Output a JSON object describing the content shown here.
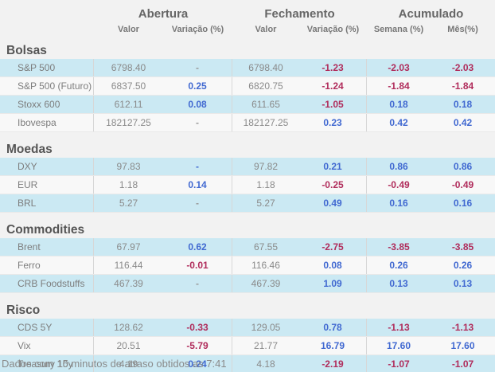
{
  "header": {
    "groups": [
      "Abertura",
      "Fechamento",
      "Acumulado"
    ],
    "subcolumns": [
      "Valor",
      "Variação (%)",
      "Valor",
      "Variação (%)",
      "Semana (%)",
      "Mês(%)"
    ]
  },
  "sections": [
    {
      "id": "bolsas",
      "title": "Bolsas",
      "rows": [
        {
          "name": "S&P 500",
          "values": [
            {
              "t": "6798.40",
              "s": "val"
            },
            {
              "t": "-",
              "s": "neu"
            },
            {
              "t": "6798.40",
              "s": "val"
            },
            {
              "t": "-1.23",
              "s": "neg"
            },
            {
              "t": "-2.03",
              "s": "neg"
            },
            {
              "t": "-2.03",
              "s": "neg"
            }
          ]
        },
        {
          "name": "S&P 500 (Futuro)",
          "values": [
            {
              "t": "6837.50",
              "s": "val"
            },
            {
              "t": "0.25",
              "s": "pos"
            },
            {
              "t": "6820.75",
              "s": "val"
            },
            {
              "t": "-1.24",
              "s": "neg"
            },
            {
              "t": "-1.84",
              "s": "neg"
            },
            {
              "t": "-1.84",
              "s": "neg"
            }
          ]
        },
        {
          "name": "Stoxx 600",
          "values": [
            {
              "t": "612.11",
              "s": "val"
            },
            {
              "t": "0.08",
              "s": "pos"
            },
            {
              "t": "611.65",
              "s": "val"
            },
            {
              "t": "-1.05",
              "s": "neg"
            },
            {
              "t": "0.18",
              "s": "pos"
            },
            {
              "t": "0.18",
              "s": "pos"
            }
          ]
        },
        {
          "name": "Ibovespa",
          "values": [
            {
              "t": "182127.25",
              "s": "val"
            },
            {
              "t": "-",
              "s": "neu"
            },
            {
              "t": "182127.25",
              "s": "val"
            },
            {
              "t": "0.23",
              "s": "pos"
            },
            {
              "t": "0.42",
              "s": "pos"
            },
            {
              "t": "0.42",
              "s": "pos"
            }
          ]
        }
      ]
    },
    {
      "id": "moedas",
      "title": "Moedas",
      "rows": [
        {
          "name": "DXY",
          "values": [
            {
              "t": "97.83",
              "s": "val"
            },
            {
              "t": "-",
              "s": "pos"
            },
            {
              "t": "97.82",
              "s": "val"
            },
            {
              "t": "0.21",
              "s": "pos"
            },
            {
              "t": "0.86",
              "s": "pos"
            },
            {
              "t": "0.86",
              "s": "pos"
            }
          ]
        },
        {
          "name": "EUR",
          "values": [
            {
              "t": "1.18",
              "s": "val"
            },
            {
              "t": "0.14",
              "s": "pos"
            },
            {
              "t": "1.18",
              "s": "val"
            },
            {
              "t": "-0.25",
              "s": "neg"
            },
            {
              "t": "-0.49",
              "s": "neg"
            },
            {
              "t": "-0.49",
              "s": "neg"
            }
          ]
        },
        {
          "name": "BRL",
          "values": [
            {
              "t": "5.27",
              "s": "val"
            },
            {
              "t": "-",
              "s": "neu"
            },
            {
              "t": "5.27",
              "s": "val"
            },
            {
              "t": "0.49",
              "s": "pos"
            },
            {
              "t": "0.16",
              "s": "pos"
            },
            {
              "t": "0.16",
              "s": "pos"
            }
          ]
        }
      ]
    },
    {
      "id": "commodities",
      "title": "Commodities",
      "rows": [
        {
          "name": "Brent",
          "values": [
            {
              "t": "67.97",
              "s": "val"
            },
            {
              "t": "0.62",
              "s": "pos"
            },
            {
              "t": "67.55",
              "s": "val"
            },
            {
              "t": "-2.75",
              "s": "neg"
            },
            {
              "t": "-3.85",
              "s": "neg"
            },
            {
              "t": "-3.85",
              "s": "neg"
            }
          ]
        },
        {
          "name": "Ferro",
          "values": [
            {
              "t": "116.44",
              "s": "val"
            },
            {
              "t": "-0.01",
              "s": "neg"
            },
            {
              "t": "116.46",
              "s": "val"
            },
            {
              "t": "0.08",
              "s": "pos"
            },
            {
              "t": "0.26",
              "s": "pos"
            },
            {
              "t": "0.26",
              "s": "pos"
            }
          ]
        },
        {
          "name": "CRB Foodstuffs",
          "values": [
            {
              "t": "467.39",
              "s": "val"
            },
            {
              "t": "-",
              "s": "neu"
            },
            {
              "t": "467.39",
              "s": "val"
            },
            {
              "t": "1.09",
              "s": "pos"
            },
            {
              "t": "0.13",
              "s": "pos"
            },
            {
              "t": "0.13",
              "s": "pos"
            }
          ]
        }
      ]
    },
    {
      "id": "risco",
      "title": "Risco",
      "rows": [
        {
          "name": "CDS 5Y",
          "values": [
            {
              "t": "128.62",
              "s": "val"
            },
            {
              "t": "-0.33",
              "s": "neg"
            },
            {
              "t": "129.05",
              "s": "val"
            },
            {
              "t": "0.78",
              "s": "pos"
            },
            {
              "t": "-1.13",
              "s": "neg"
            },
            {
              "t": "-1.13",
              "s": "neg"
            }
          ]
        },
        {
          "name": "Vix",
          "values": [
            {
              "t": "20.51",
              "s": "val"
            },
            {
              "t": "-5.79",
              "s": "neg"
            },
            {
              "t": "21.77",
              "s": "val"
            },
            {
              "t": "16.79",
              "s": "pos"
            },
            {
              "t": "17.60",
              "s": "pos"
            },
            {
              "t": "17.60",
              "s": "pos"
            }
          ]
        },
        {
          "name": "Treasury 10y",
          "values": [
            {
              "t": "4.19",
              "s": "val"
            },
            {
              "t": "0.24",
              "s": "pos"
            },
            {
              "t": "4.18",
              "s": "val"
            },
            {
              "t": "-2.19",
              "s": "neg"
            },
            {
              "t": "-1.07",
              "s": "neg"
            },
            {
              "t": "-1.07",
              "s": "neg"
            }
          ]
        }
      ]
    }
  ],
  "footer": {
    "note": "Dados com 15 minutos de atraso obtidos as 7:41"
  },
  "colors": {
    "positive": "#4169d1",
    "negative": "#b02c5b",
    "neutral": "#999999",
    "row_highlight": "#cbe9f3",
    "row_alt": "#f8f8f8"
  }
}
